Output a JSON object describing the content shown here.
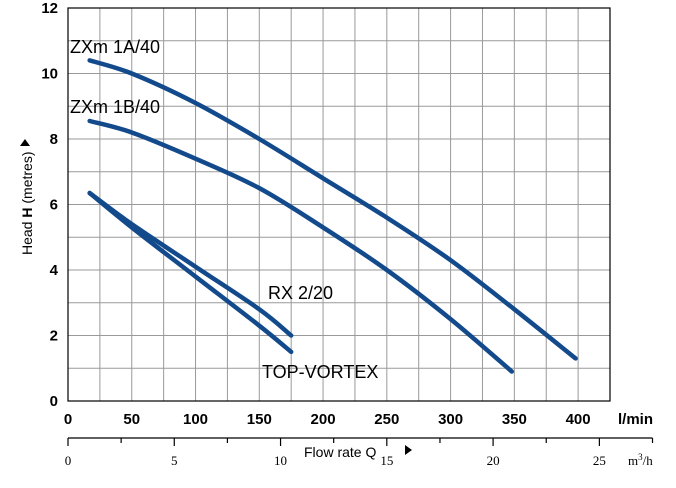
{
  "chart_data": {
    "type": "line",
    "title": "",
    "xlabel": "Flow rate Q",
    "ylabel_prefix": "Head ",
    "ylabel_bold": "H",
    "ylabel_suffix": " (metres)",
    "x_unit": "l/min",
    "x2_unit_main": "m",
    "x2_unit_sup": "3",
    "x2_unit_tail": "/h",
    "xlim": [
      0,
      425
    ],
    "ylim": [
      0,
      12
    ],
    "x_ticks": [
      0,
      50,
      100,
      150,
      200,
      250,
      300,
      350,
      400
    ],
    "y_ticks": [
      0,
      2,
      4,
      6,
      8,
      10,
      12
    ],
    "x2_ticks": [
      0,
      5,
      10,
      15,
      20,
      25
    ],
    "grid": true,
    "series": [
      {
        "name": "ZXm 1A/40",
        "color": "#134a8c",
        "x": [
          17,
          50,
          100,
          150,
          200,
          250,
          300,
          350,
          398
        ],
        "y": [
          10.4,
          10.0,
          9.1,
          8.0,
          6.8,
          5.6,
          4.3,
          2.8,
          1.3
        ]
      },
      {
        "name": "ZXm 1B/40",
        "color": "#134a8c",
        "x": [
          17,
          50,
          100,
          150,
          200,
          250,
          300,
          348
        ],
        "y": [
          8.55,
          8.2,
          7.4,
          6.5,
          5.3,
          4.0,
          2.5,
          0.9
        ]
      },
      {
        "name": "RX 2/20",
        "color": "#134a8c",
        "x": [
          17,
          50,
          100,
          150,
          175
        ],
        "y": [
          6.35,
          5.4,
          4.1,
          2.8,
          2.0
        ]
      },
      {
        "name": "TOP-VORTEX",
        "color": "#134a8c",
        "x": [
          17,
          50,
          100,
          150,
          175
        ],
        "y": [
          6.35,
          5.3,
          3.8,
          2.3,
          1.5
        ]
      }
    ]
  }
}
